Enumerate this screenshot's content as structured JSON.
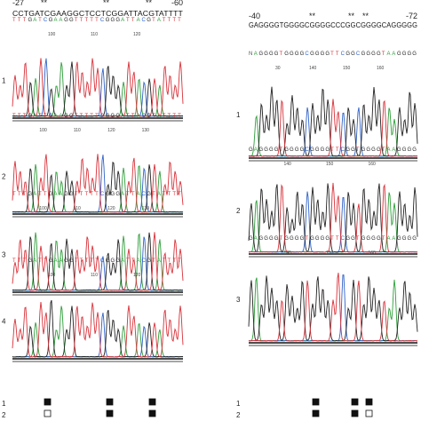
{
  "left": {
    "range_start": "-27",
    "range_end": "-60",
    "stars": [
      "**",
      "**",
      "**"
    ],
    "reference": "CCTGATCGAAGGCTCCTCGGATTACGTATTTT",
    "traces": [
      {
        "label": "1",
        "sequence": "TTTGATCGAAGGTTTTTCGGGATTACGTATTTT",
        "positions": [
          "100",
          "110",
          "120"
        ]
      },
      {
        "label": "2",
        "sequence": "TTTGATTGAAGGTTTTTCGGGATTACGTATTTT",
        "positions": [
          "100",
          "110",
          "120",
          "130"
        ]
      },
      {
        "label": "3",
        "sequence": "TTTGATTGAAGGTTTTTCGGGATTACGTATTTT",
        "positions": [
          "100",
          "110",
          "120",
          "130"
        ]
      },
      {
        "label": "4",
        "sequence": "TTTGATTGAAGGTTTTTCGGGATTACGTATTTT",
        "positions": [
          "100",
          "110",
          "120"
        ]
      }
    ],
    "bottom_labels": [
      "1",
      "2"
    ]
  },
  "right": {
    "range_start": "-40",
    "range_end": "-72",
    "stars": [
      "**",
      "**",
      "**"
    ],
    "reference": "GAGGGGTGGGGCGGGGCCCGGCGGGGCAGGGGG",
    "traces": [
      {
        "label": "1",
        "sequence": "NAGGGGTGGGGCGGGGTTCGGCGGGGTAAGGGG",
        "positions": [
          "30",
          "140",
          "150",
          "160"
        ]
      },
      {
        "label": "2",
        "sequence": "GAGGGGTGGGGCGGGGTTCGGTGGGGTAAGGGG",
        "positions": [
          "140",
          "150",
          "160"
        ]
      },
      {
        "label": "3",
        "sequence": "GAGGGGTGGGGTGGGGTTCGGTGGGGTAAGGGG",
        "positions": [
          "140",
          "150",
          "160"
        ]
      }
    ],
    "bottom_labels": [
      "1",
      "2"
    ]
  },
  "colors": {
    "A": "#2e9e3a",
    "C": "#2f62c8",
    "G": "#222222",
    "T": "#d8323a",
    "N": "#555555"
  }
}
